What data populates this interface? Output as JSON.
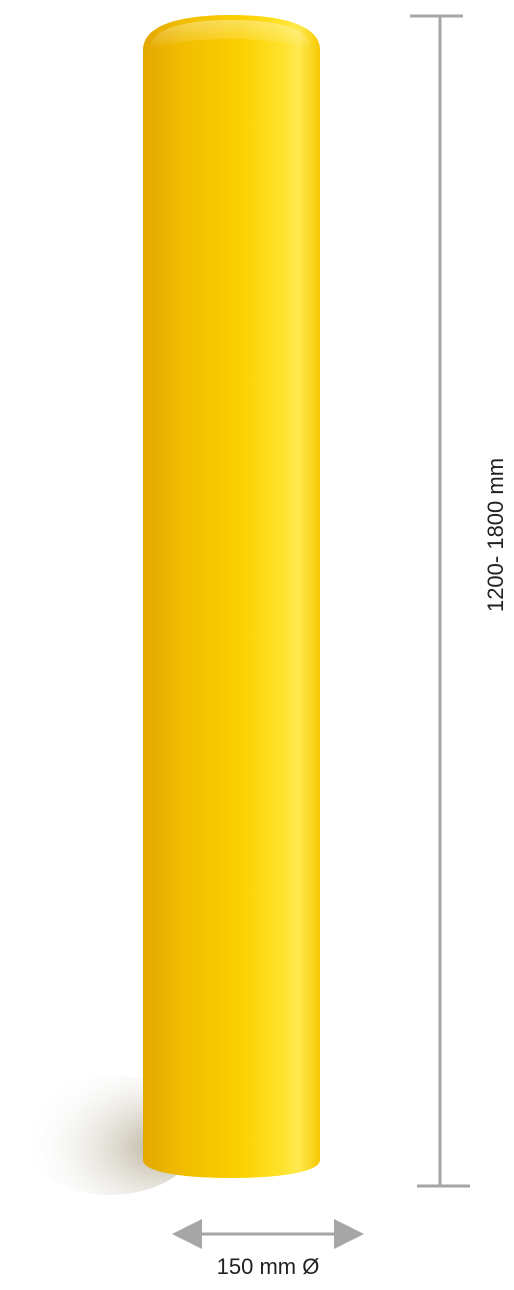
{
  "dimensions": {
    "height": "1200- 1800 mm",
    "diameter": "150 mm Ø"
  }
}
